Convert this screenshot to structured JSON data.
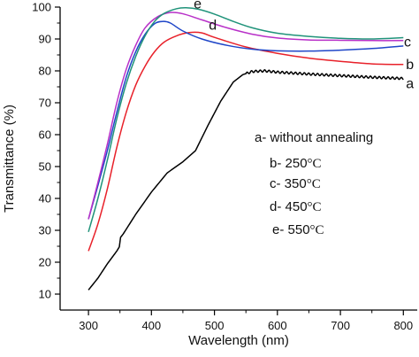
{
  "chart_data": {
    "type": "line",
    "xlabel": "Wavelength (nm)",
    "ylabel": "Transmittance (%)",
    "xlim": [
      255,
      822
    ],
    "ylim": [
      5,
      100
    ],
    "xticks": [
      300,
      400,
      500,
      600,
      700,
      800
    ],
    "yticks": [
      10,
      20,
      30,
      40,
      50,
      60,
      70,
      80,
      90,
      100
    ],
    "grid": false,
    "series": [
      {
        "name": "a",
        "color": "#000000",
        "points": [
          [
            300,
            11.3
          ],
          [
            315,
            15
          ],
          [
            330,
            19.5
          ],
          [
            345,
            23.5
          ],
          [
            349,
            24.8
          ],
          [
            351,
            27.8
          ],
          [
            355,
            28.8
          ],
          [
            375,
            35
          ],
          [
            400,
            42
          ],
          [
            425,
            48
          ],
          [
            450,
            51.5
          ],
          [
            470,
            55
          ],
          [
            490,
            63
          ],
          [
            510,
            70.5
          ],
          [
            530,
            76.5
          ],
          [
            545,
            78.8
          ],
          [
            560,
            79.8
          ],
          [
            580,
            80
          ],
          [
            600,
            79.6
          ],
          [
            650,
            79
          ],
          [
            700,
            78.5
          ],
          [
            750,
            78
          ],
          [
            800,
            77.6
          ]
        ],
        "ripple": [
          550,
          800
        ]
      },
      {
        "name": "b",
        "color": "#e8212a",
        "points": [
          [
            300,
            23.5
          ],
          [
            315,
            32
          ],
          [
            330,
            43
          ],
          [
            345,
            56
          ],
          [
            360,
            67
          ],
          [
            375,
            75.5
          ],
          [
            390,
            81.5
          ],
          [
            405,
            86
          ],
          [
            420,
            89
          ],
          [
            440,
            91
          ],
          [
            460,
            92
          ],
          [
            480,
            91.9
          ],
          [
            500,
            90.5
          ],
          [
            550,
            87.5
          ],
          [
            600,
            85.5
          ],
          [
            650,
            84
          ],
          [
            700,
            83
          ],
          [
            750,
            82.2
          ],
          [
            800,
            82
          ]
        ]
      },
      {
        "name": "c",
        "color": "#1f46c8",
        "points": [
          [
            300,
            33.5
          ],
          [
            315,
            44
          ],
          [
            330,
            55
          ],
          [
            345,
            67
          ],
          [
            360,
            78
          ],
          [
            375,
            86
          ],
          [
            390,
            91.5
          ],
          [
            405,
            94.8
          ],
          [
            418,
            95.5
          ],
          [
            430,
            95
          ],
          [
            450,
            92.5
          ],
          [
            480,
            90
          ],
          [
            520,
            88
          ],
          [
            560,
            86.8
          ],
          [
            600,
            86.3
          ],
          [
            650,
            86.2
          ],
          [
            700,
            86.5
          ],
          [
            750,
            87
          ],
          [
            800,
            87.8
          ]
        ]
      },
      {
        "name": "d",
        "color": "#b830c8",
        "points": [
          [
            300,
            33.5
          ],
          [
            315,
            45
          ],
          [
            330,
            57
          ],
          [
            345,
            70
          ],
          [
            360,
            80.5
          ],
          [
            375,
            88
          ],
          [
            390,
            93.5
          ],
          [
            410,
            97
          ],
          [
            430,
            98.3
          ],
          [
            450,
            97.9
          ],
          [
            480,
            96
          ],
          [
            520,
            93.5
          ],
          [
            560,
            91.5
          ],
          [
            600,
            90.3
          ],
          [
            650,
            89.7
          ],
          [
            700,
            89.6
          ],
          [
            750,
            89.5
          ],
          [
            800,
            89.5
          ]
        ]
      },
      {
        "name": "e",
        "color": "#20937a",
        "points": [
          [
            300,
            29.5
          ],
          [
            315,
            40
          ],
          [
            330,
            52
          ],
          [
            345,
            65
          ],
          [
            360,
            76
          ],
          [
            375,
            84.5
          ],
          [
            390,
            91
          ],
          [
            405,
            95.5
          ],
          [
            420,
            98
          ],
          [
            440,
            99.5
          ],
          [
            455,
            99.8
          ],
          [
            475,
            99.3
          ],
          [
            500,
            97.8
          ],
          [
            530,
            95.5
          ],
          [
            560,
            93.5
          ],
          [
            600,
            91.8
          ],
          [
            650,
            90.8
          ],
          [
            700,
            90.2
          ],
          [
            750,
            90
          ],
          [
            800,
            90.4
          ]
        ]
      }
    ],
    "curve_labels": [
      {
        "text": "a",
        "x": 804,
        "y": 76
      },
      {
        "text": "b",
        "x": 804,
        "y": 82
      },
      {
        "text": "c",
        "x": 801,
        "y": 89
      },
      {
        "text": "d",
        "x": 491,
        "y": 94.3
      },
      {
        "text": "e",
        "x": 467,
        "y": 101
      }
    ],
    "legend": [
      {
        "text": "a- without annealing",
        "unit": ""
      },
      {
        "text": "b- 250",
        "unit": "°C"
      },
      {
        "text": "c- 350",
        "unit": "°C"
      },
      {
        "text": "d- 450",
        "unit": "°C"
      },
      {
        "text": "e- 550",
        "unit": "°C"
      }
    ]
  }
}
